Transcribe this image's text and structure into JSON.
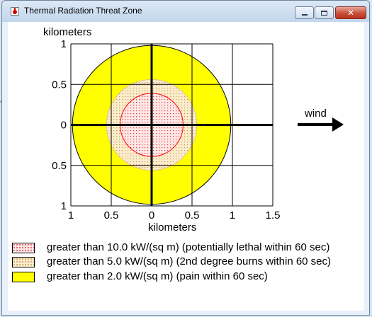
{
  "window": {
    "title": "Thermal Radiation Threat Zone",
    "controls": {
      "minimize": "minimize",
      "maximize": "maximize",
      "close": "✕"
    }
  },
  "plot": {
    "y_axis_label": "kilometers",
    "x_axis_label": "kilometers",
    "y_tick_labels": [
      "1",
      "0.5",
      "0",
      "0.5",
      "1"
    ],
    "x_tick_labels": [
      "1",
      "0.5",
      "0",
      "0.5",
      "1",
      "1.5"
    ],
    "wind_label": "wind"
  },
  "chart_data": {
    "type": "threat-zone",
    "x_range": [
      -1,
      1.5
    ],
    "y_range": [
      -1,
      1
    ],
    "grid": true,
    "zones": [
      {
        "threshold_kw_per_sq_m": 2.0,
        "radius_km": 0.98,
        "fill": "#ffff00",
        "outline": "#000000",
        "pattern": "solid"
      },
      {
        "threshold_kw_per_sq_m": 5.0,
        "radius_km": 0.56,
        "fill": "#fbeccd",
        "outline": "#e3c28a",
        "pattern": "dotted"
      },
      {
        "threshold_kw_per_sq_m": 10.0,
        "radius_km": 0.39,
        "fill": "#ffe6e6",
        "outline": "#ff0000",
        "pattern": "dotted"
      }
    ],
    "wind_direction": "east"
  },
  "legend": [
    {
      "text": "greater than 10.0 kW/(sq m) (potentially lethal within 60 sec)",
      "swatch_color": "#fde8e8",
      "dot_color": "#e04040"
    },
    {
      "text": "greater than 5.0 kW/(sq m) (2nd degree burns within 60 sec)",
      "swatch_color": "#fbeccd",
      "dot_color": "#c99a50"
    },
    {
      "text": "greater than 2.0 kW/(sq m) (pain within 60 sec)",
      "swatch_color": "#ffff00",
      "dot_color": ""
    }
  ],
  "colors": {
    "zone_outer": "#ffff00",
    "zone_mid_outline": "#e3c28a",
    "zone_inner_outline": "#ff0000"
  }
}
